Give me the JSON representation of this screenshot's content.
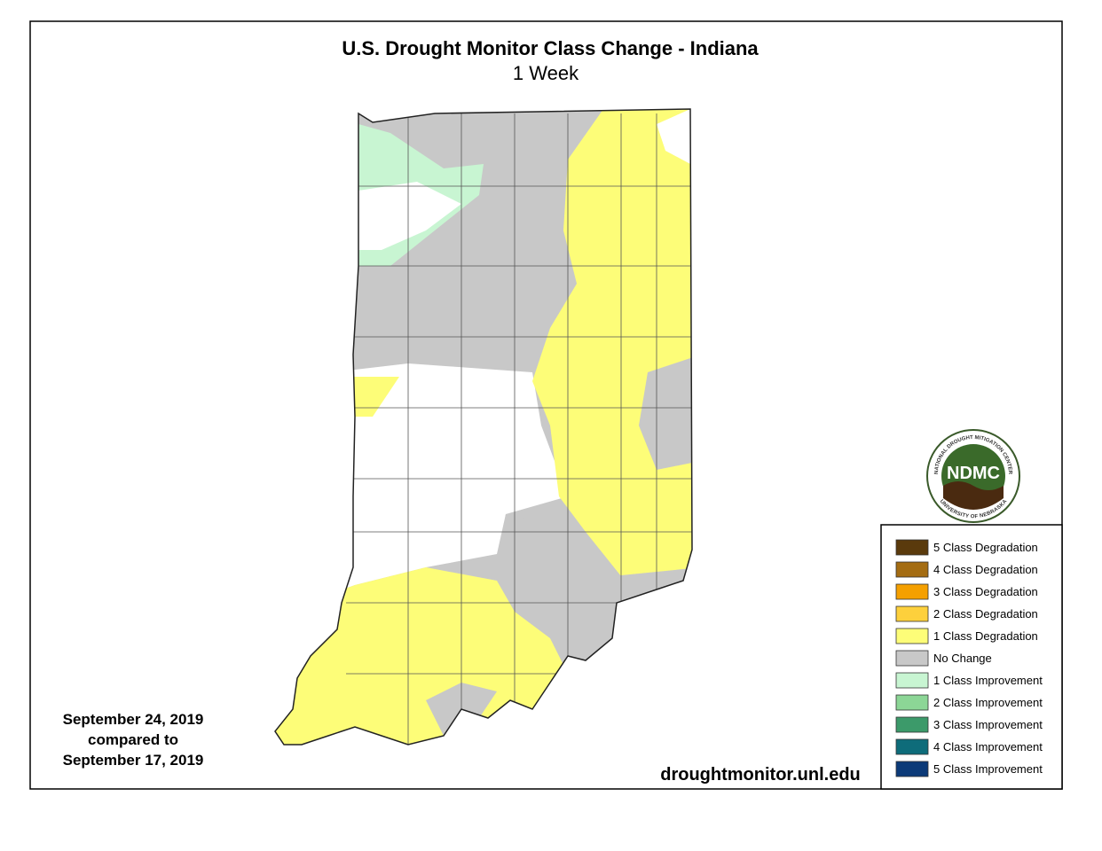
{
  "header": {
    "title": "U.S. Drought Monitor Class Change - Indiana",
    "subtitle": "1 Week"
  },
  "dates": [
    "September 24, 2019",
    "compared to",
    "September 17, 2019"
  ],
  "source": "droughtmonitor.unl.edu",
  "logo": {
    "abbr": "NDMC",
    "top": "NATIONAL DROUGHT MITIGATION CENTER",
    "bottom": "UNIVERSITY OF NEBRASKA"
  },
  "legend": [
    {
      "label": "5 Class Degradation",
      "color": "#5a3a0c"
    },
    {
      "label": "4 Class Degradation",
      "color": "#a46c12"
    },
    {
      "label": "3 Class Degradation",
      "color": "#f5a000"
    },
    {
      "label": "2 Class Degradation",
      "color": "#fdd03c"
    },
    {
      "label": "1 Class Degradation",
      "color": "#fdfd78"
    },
    {
      "label": "No Change",
      "color": "#c8c8c8"
    },
    {
      "label": "1 Class Improvement",
      "color": "#c8f5d2"
    },
    {
      "label": "2 Class Improvement",
      "color": "#8cd696"
    },
    {
      "label": "3 Class Improvement",
      "color": "#3c9a6a"
    },
    {
      "label": "4 Class Improvement",
      "color": "#0e6c7a"
    },
    {
      "label": "5 Class Improvement",
      "color": "#0c3a78"
    }
  ]
}
